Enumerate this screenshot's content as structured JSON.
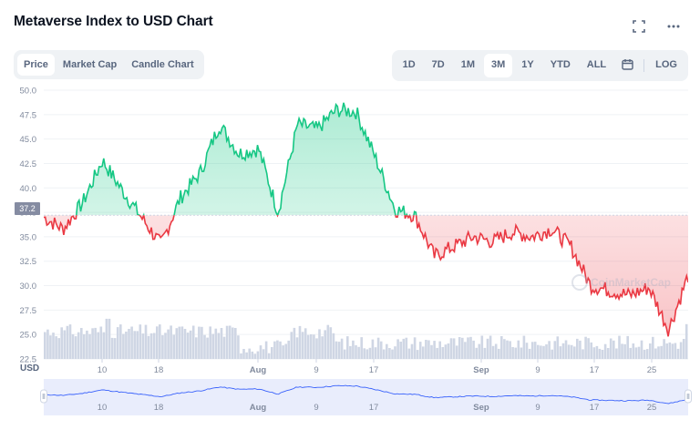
{
  "header": {
    "title": "Metaverse Index to USD Chart",
    "icons": [
      "fullscreen-icon",
      "more-icon"
    ]
  },
  "chart_type_tabs": [
    {
      "label": "Price",
      "active": true
    },
    {
      "label": "Market Cap",
      "active": false
    },
    {
      "label": "Candle Chart",
      "active": false
    }
  ],
  "range_tabs": [
    {
      "label": "1D",
      "active": false
    },
    {
      "label": "7D",
      "active": false
    },
    {
      "label": "1M",
      "active": false
    },
    {
      "label": "3M",
      "active": true
    },
    {
      "label": "1Y",
      "active": false
    },
    {
      "label": "YTD",
      "active": false
    },
    {
      "label": "ALL",
      "active": false
    }
  ],
  "calendar_icon": "calendar-icon",
  "log_label": "LOG",
  "currency_label": "USD",
  "current_price_tag": "37.2",
  "watermark": "CoinMarketCap",
  "colors": {
    "up": "#16c784",
    "down": "#ea3943",
    "volume": "#cfd6e4",
    "navigator_fill": "#dfe6fb",
    "navigator_line": "#3861fb",
    "grid": "#eff2f5",
    "axis_text": "#808a9d"
  },
  "chart_data": {
    "type": "line",
    "title": "Metaverse Index to USD Chart",
    "xlabel": "",
    "ylabel": "USD",
    "ylim": [
      22.5,
      50.0
    ],
    "y_ticks": [
      "50.0",
      "47.5",
      "45.0",
      "42.5",
      "40.0",
      "37.5",
      "35.0",
      "32.5",
      "30.0",
      "27.5",
      "25.0",
      "22.5"
    ],
    "x_ticks": [
      "10",
      "18",
      "Aug",
      "9",
      "17",
      "Sep",
      "9",
      "17",
      "25"
    ],
    "navigator_x_ticks": [
      "10",
      "18",
      "Aug",
      "9",
      "17",
      "Sep",
      "9",
      "17",
      "25"
    ],
    "baseline": 37.2,
    "grid": true,
    "series": [
      {
        "name": "Price",
        "x": [
          "Jul 2",
          "Jul 5",
          "Jul 8",
          "Jul 10",
          "Jul 13",
          "Jul 15",
          "Jul 18",
          "Jul 20",
          "Jul 23",
          "Jul 26",
          "Jul 29",
          "Aug 1",
          "Aug 4",
          "Aug 7",
          "Aug 9",
          "Aug 12",
          "Aug 15",
          "Aug 17",
          "Aug 19",
          "Aug 22",
          "Aug 25",
          "Aug 28",
          "Sep 1",
          "Sep 4",
          "Sep 7",
          "Sep 9",
          "Sep 12",
          "Sep 15",
          "Sep 17",
          "Sep 20",
          "Sep 23",
          "Sep 25",
          "Sep 27",
          "Sep 29"
        ],
        "values": [
          37.0,
          35.8,
          38.5,
          42.8,
          39.8,
          37.0,
          34.2,
          39.0,
          41.5,
          46.5,
          43.5,
          44.0,
          37.5,
          46.5,
          46.0,
          48.0,
          47.8,
          43.0,
          37.8,
          37.2,
          33.0,
          34.0,
          35.0,
          34.5,
          35.5,
          35.0,
          35.8,
          34.0,
          30.0,
          29.5,
          29.0,
          29.8,
          25.5,
          31.0
        ]
      },
      {
        "name": "Volume",
        "x": [
          "Jul",
          "Aug",
          "Sep"
        ],
        "values": [
          0.55,
          0.3,
          0.25
        ]
      }
    ]
  }
}
